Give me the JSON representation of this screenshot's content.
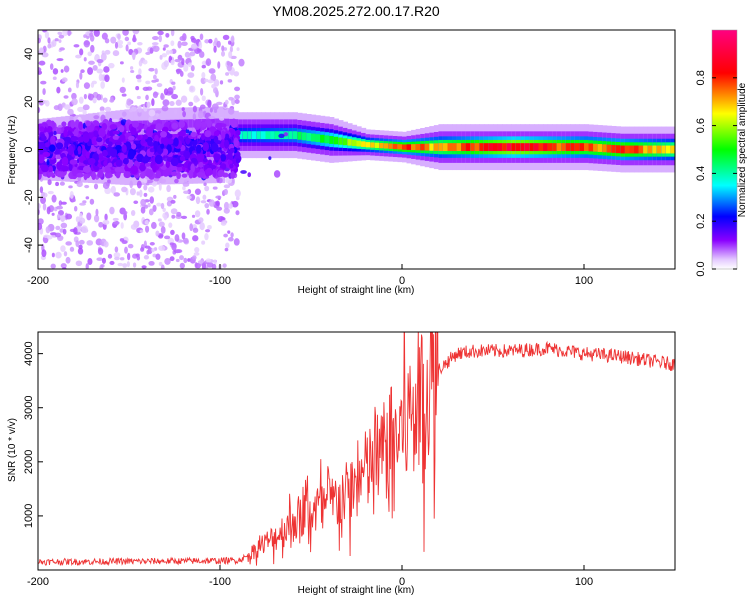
{
  "title": "YM08.2025.272.00.17.R20",
  "chart_data": [
    {
      "type": "heatmap",
      "name": "spectrogram",
      "xlabel": "Height of straight line (km)",
      "ylabel": "Frequency (Hz)",
      "xlim": [
        -200,
        150
      ],
      "ylim": [
        -50,
        50
      ],
      "xticks": [
        "-200",
        "-100",
        "0",
        "100"
      ],
      "yticks": [
        "40",
        "20",
        "0",
        "-20",
        "-40"
      ],
      "colorbar": {
        "label": "Normalized spectral amplitude",
        "ticks": [
          "0.0",
          "0.2",
          "0.4",
          "0.6",
          "0.8"
        ],
        "range": [
          0,
          1
        ],
        "colors": [
          "#ffffff",
          "#8a00ff",
          "#0000ff",
          "#00ffff",
          "#00ff00",
          "#ffff00",
          "#ff0000",
          "#ff0080"
        ]
      },
      "ridge": {
        "description_points_x": [
          -200,
          -150,
          -100,
          -90,
          -60,
          -40,
          -20,
          0,
          20,
          60,
          100,
          120,
          150
        ],
        "center_freq": [
          0,
          1,
          2,
          6,
          6,
          4,
          2,
          1,
          1,
          1,
          1,
          0,
          0
        ],
        "width_hz": [
          4,
          5,
          5,
          3,
          3,
          3,
          2,
          2,
          3,
          3,
          3,
          3,
          3
        ],
        "peak_amp": [
          0.15,
          0.18,
          0.2,
          0.4,
          0.45,
          0.55,
          0.7,
          0.85,
          0.75,
          0.95,
          0.8,
          0.85,
          0.7
        ]
      }
    },
    {
      "type": "line",
      "name": "snr",
      "xlabel": "Height of straight line (km)",
      "ylabel": "SNR (10 * v/v)",
      "xlim": [
        -200,
        150
      ],
      "ylim": [
        0,
        4400
      ],
      "xticks": [
        "-200",
        "-100",
        "0",
        "100"
      ],
      "yticks": [
        "4000",
        "3000",
        "2000",
        "1000"
      ],
      "color": "#ee3333",
      "series": [
        {
          "name": "SNR",
          "x": [
            -200,
            -150,
            -100,
            -90,
            -85,
            -80,
            -70,
            -60,
            -50,
            -40,
            -30,
            -20,
            -10,
            0,
            10,
            20,
            30,
            40,
            60,
            80,
            100,
            120,
            150
          ],
          "y": [
            150,
            160,
            170,
            180,
            250,
            400,
            600,
            900,
            1100,
            1200,
            1400,
            1800,
            2200,
            2600,
            3200,
            3700,
            4000,
            4050,
            4050,
            4100,
            4000,
            3950,
            3800
          ]
        }
      ]
    }
  ]
}
